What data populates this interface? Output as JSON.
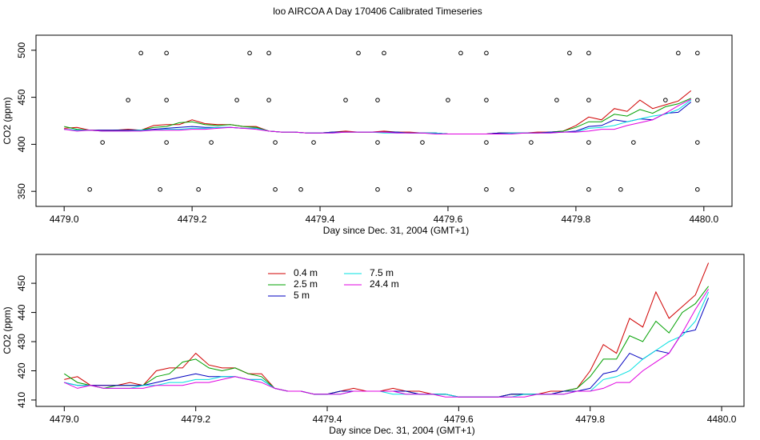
{
  "title": "loo AIRCOA A  Day 170406  Calibrated Timeseries",
  "chart_data": [
    {
      "type": "line",
      "xlabel": "Day since Dec. 31, 2004 (GMT+1)",
      "ylabel": "CO2 (ppm)",
      "legend": false,
      "xlim": [
        4478.956,
        4480.044
      ],
      "ylim": [
        334,
        516
      ],
      "xticks": [
        {
          "value": 4479.0,
          "label": "4479.0"
        },
        {
          "value": 4479.2,
          "label": "4479.2"
        },
        {
          "value": 4479.4,
          "label": "4479.4"
        },
        {
          "value": 4479.6,
          "label": "4479.6"
        },
        {
          "value": 4479.8,
          "label": "4479.8"
        },
        {
          "value": 4480.0,
          "label": "4480.0"
        }
      ],
      "yticks": [
        350,
        400,
        450,
        500
      ],
      "x": [
        4479.0,
        4479.02,
        4479.04,
        4479.06,
        4479.08,
        4479.1,
        4479.12,
        4479.14,
        4479.16,
        4479.18,
        4479.2,
        4479.22,
        4479.24,
        4479.26,
        4479.28,
        4479.3,
        4479.32,
        4479.34,
        4479.36,
        4479.38,
        4479.4,
        4479.42,
        4479.44,
        4479.46,
        4479.48,
        4479.5,
        4479.52,
        4479.54,
        4479.56,
        4479.58,
        4479.6,
        4479.62,
        4479.64,
        4479.66,
        4479.68,
        4479.7,
        4479.72,
        4479.74,
        4479.76,
        4479.78,
        4479.8,
        4479.82,
        4479.84,
        4479.86,
        4479.88,
        4479.9,
        4479.92,
        4479.94,
        4479.96,
        4479.98
      ],
      "series": [
        {
          "name": "0.4 m",
          "color": "#d00000",
          "values": [
            417,
            418,
            415,
            415,
            415,
            416,
            415,
            420,
            421,
            421,
            426,
            422,
            421,
            421,
            419,
            419,
            414,
            413,
            413,
            412,
            412,
            413,
            414,
            413,
            413,
            414,
            413,
            413,
            412,
            412,
            411,
            411,
            411,
            411,
            412,
            412,
            412,
            413,
            413,
            414,
            420,
            429,
            426,
            438,
            435,
            447,
            438,
            442,
            446,
            457
          ]
        },
        {
          "name": "2.5 m",
          "color": "#00a000",
          "values": [
            419,
            416,
            415,
            414,
            415,
            415,
            415,
            418,
            419,
            423,
            424,
            421,
            420,
            421,
            419,
            418,
            414,
            413,
            413,
            412,
            412,
            413,
            413,
            413,
            413,
            413,
            413,
            412,
            412,
            412,
            411,
            411,
            411,
            411,
            412,
            412,
            412,
            412,
            413,
            414,
            418,
            424,
            424,
            432,
            430,
            437,
            433,
            440,
            443,
            449
          ]
        },
        {
          "name": "5 m",
          "color": "#0000c0",
          "values": [
            416,
            415,
            415,
            415,
            415,
            415,
            415,
            416,
            417,
            418,
            419,
            418,
            418,
            418,
            417,
            417,
            414,
            413,
            413,
            412,
            412,
            413,
            413,
            413,
            413,
            413,
            413,
            412,
            412,
            412,
            411,
            411,
            411,
            411,
            412,
            412,
            412,
            412,
            413,
            413,
            414,
            419,
            420,
            426,
            424,
            427,
            426,
            433,
            434,
            445
          ]
        },
        {
          "name": "7.5 m",
          "color": "#00e0e0",
          "values": [
            416,
            415,
            415,
            414,
            414,
            414,
            415,
            415,
            416,
            416,
            417,
            417,
            418,
            418,
            417,
            417,
            414,
            413,
            413,
            412,
            412,
            412,
            413,
            413,
            413,
            412,
            412,
            412,
            412,
            412,
            411,
            411,
            411,
            411,
            411,
            412,
            412,
            412,
            412,
            413,
            413,
            417,
            418,
            420,
            424,
            427,
            430,
            432,
            437,
            447
          ]
        },
        {
          "name": "24.4 m",
          "color": "#e000e0",
          "values": [
            416,
            414,
            415,
            414,
            414,
            414,
            414,
            415,
            415,
            415,
            416,
            416,
            417,
            418,
            417,
            416,
            414,
            413,
            413,
            412,
            412,
            412,
            413,
            413,
            413,
            413,
            412,
            412,
            412,
            411,
            411,
            411,
            411,
            411,
            411,
            411,
            412,
            412,
            412,
            413,
            413,
            414,
            416,
            416,
            420,
            423,
            426,
            433,
            441,
            448
          ]
        }
      ],
      "points": {
        "color": "#000000",
        "x": [
          4479.12,
          4479.16,
          4479.29,
          4479.32,
          4479.46,
          4479.5,
          4479.62,
          4479.66,
          4479.79,
          4479.82,
          4479.96,
          4479.99,
          4479.1,
          4479.16,
          4479.27,
          4479.32,
          4479.44,
          4479.49,
          4479.6,
          4479.66,
          4479.77,
          4479.82,
          4479.94,
          4479.99,
          4479.06,
          4479.16,
          4479.23,
          4479.33,
          4479.39,
          4479.49,
          4479.56,
          4479.66,
          4479.73,
          4479.82,
          4479.89,
          4479.99,
          4479.04,
          4479.15,
          4479.21,
          4479.33,
          4479.37,
          4479.49,
          4479.54,
          4479.66,
          4479.7,
          4479.82,
          4479.87,
          4479.99
        ],
        "values": [
          497,
          497,
          497,
          497,
          497,
          497,
          497,
          497,
          497,
          497,
          497,
          497,
          447,
          447,
          447,
          447,
          447,
          447,
          447,
          447,
          447,
          447,
          447,
          447,
          402,
          402,
          402,
          402,
          402,
          402,
          402,
          402,
          402,
          402,
          402,
          402,
          352,
          352,
          352,
          352,
          352,
          352,
          352,
          352,
          352,
          352,
          352,
          352
        ]
      }
    },
    {
      "type": "line",
      "xlabel": "Day since Dec. 31, 2004 (GMT+1)",
      "ylabel": "CO2 (ppm)",
      "legend": "top-left",
      "xlim": [
        4478.957,
        4480.034
      ],
      "ylim": [
        407.8,
        459.9
      ],
      "xticks": [
        {
          "value": 4479.0,
          "label": "4479.0"
        },
        {
          "value": 4479.2,
          "label": "4479.2"
        },
        {
          "value": 4479.4,
          "label": "4479.4"
        },
        {
          "value": 4479.6,
          "label": "4479.6"
        },
        {
          "value": 4479.8,
          "label": "4479.8"
        },
        {
          "value": 4480.0,
          "label": "4480.0"
        }
      ],
      "yticks": [
        410,
        420,
        430,
        440,
        450
      ],
      "x": [
        4479.0,
        4479.02,
        4479.04,
        4479.06,
        4479.08,
        4479.1,
        4479.12,
        4479.14,
        4479.16,
        4479.18,
        4479.2,
        4479.22,
        4479.24,
        4479.26,
        4479.28,
        4479.3,
        4479.32,
        4479.34,
        4479.36,
        4479.38,
        4479.4,
        4479.42,
        4479.44,
        4479.46,
        4479.48,
        4479.5,
        4479.52,
        4479.54,
        4479.56,
        4479.58,
        4479.6,
        4479.62,
        4479.64,
        4479.66,
        4479.68,
        4479.7,
        4479.72,
        4479.74,
        4479.76,
        4479.78,
        4479.8,
        4479.82,
        4479.84,
        4479.86,
        4479.88,
        4479.9,
        4479.92,
        4479.94,
        4479.96,
        4479.98
      ],
      "series": [
        {
          "name": "0.4 m",
          "color": "#d00000",
          "values": [
            417,
            418,
            415,
            415,
            415,
            416,
            415,
            420,
            421,
            421,
            426,
            422,
            421,
            421,
            419,
            419,
            414,
            413,
            413,
            412,
            412,
            413,
            414,
            413,
            413,
            414,
            413,
            413,
            412,
            412,
            411,
            411,
            411,
            411,
            412,
            412,
            412,
            413,
            413,
            414,
            420,
            429,
            426,
            438,
            435,
            447,
            438,
            442,
            446,
            457
          ]
        },
        {
          "name": "2.5 m",
          "color": "#00a000",
          "values": [
            419,
            416,
            415,
            414,
            415,
            415,
            415,
            418,
            419,
            423,
            424,
            421,
            420,
            421,
            419,
            418,
            414,
            413,
            413,
            412,
            412,
            413,
            413,
            413,
            413,
            413,
            413,
            412,
            412,
            412,
            411,
            411,
            411,
            411,
            412,
            412,
            412,
            412,
            413,
            414,
            418,
            424,
            424,
            432,
            430,
            437,
            433,
            440,
            443,
            449
          ]
        },
        {
          "name": "5 m",
          "color": "#0000c0",
          "values": [
            416,
            415,
            415,
            415,
            415,
            415,
            415,
            416,
            417,
            418,
            419,
            418,
            418,
            418,
            417,
            417,
            414,
            413,
            413,
            412,
            412,
            413,
            413,
            413,
            413,
            413,
            413,
            412,
            412,
            412,
            411,
            411,
            411,
            411,
            412,
            412,
            412,
            412,
            413,
            413,
            414,
            419,
            420,
            426,
            424,
            427,
            426,
            433,
            434,
            445
          ]
        },
        {
          "name": "7.5 m",
          "color": "#00e0e0",
          "values": [
            416,
            415,
            415,
            414,
            414,
            414,
            415,
            415,
            416,
            416,
            417,
            417,
            418,
            418,
            417,
            417,
            414,
            413,
            413,
            412,
            412,
            412,
            413,
            413,
            413,
            412,
            412,
            412,
            412,
            412,
            411,
            411,
            411,
            411,
            411,
            412,
            412,
            412,
            412,
            413,
            413,
            417,
            418,
            420,
            424,
            427,
            430,
            432,
            437,
            447
          ]
        },
        {
          "name": "24.4 m",
          "color": "#e000e0",
          "values": [
            416,
            414,
            415,
            414,
            414,
            414,
            414,
            415,
            415,
            415,
            416,
            416,
            417,
            418,
            417,
            416,
            414,
            413,
            413,
            412,
            412,
            412,
            413,
            413,
            413,
            413,
            412,
            412,
            412,
            411,
            411,
            411,
            411,
            411,
            411,
            411,
            412,
            412,
            412,
            413,
            413,
            414,
            416,
            416,
            420,
            423,
            426,
            433,
            441,
            448
          ]
        }
      ]
    }
  ]
}
